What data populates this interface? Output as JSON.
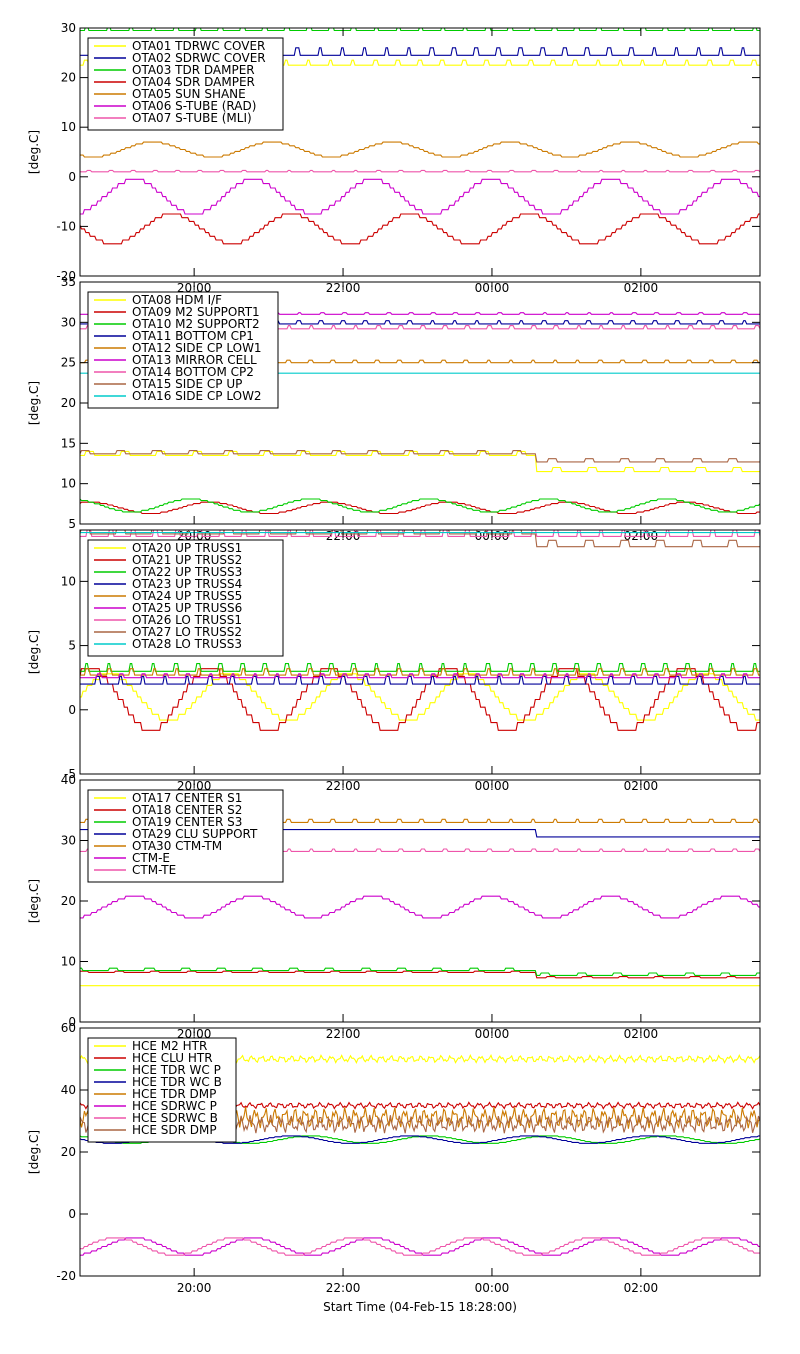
{
  "x_axis": {
    "tick_labels": [
      "20:00",
      "22:00",
      "00:00",
      "02:00"
    ],
    "tick_hours": [
      20,
      22,
      24,
      26
    ],
    "xlim_hours": [
      18.467,
      27.6
    ],
    "title": "Start Time (04-Feb-15 18:28:00)"
  },
  "chart_data": [
    {
      "type": "line",
      "ylabel": "[deg.C]",
      "ylim": [
        -20,
        30
      ],
      "yticks": [
        -20,
        -10,
        0,
        10,
        20,
        30
      ],
      "legend": "top-left",
      "series": [
        {
          "name": "OTA01 TDRWC COVER",
          "color": "#ffff00",
          "kind": "flat",
          "base": 22.5,
          "amp": 1.0
        },
        {
          "name": "OTA02 SDRWC COVER",
          "color": "#000099",
          "kind": "flat",
          "base": 24.5,
          "amp": 1.5
        },
        {
          "name": "OTA03 TDR DAMPER",
          "color": "#00cc00",
          "kind": "flat",
          "base": 29.5,
          "amp": 1.0
        },
        {
          "name": "OTA04 SDR DAMPER",
          "color": "#cc0000",
          "kind": "wave",
          "base": -10.5,
          "amp": 3.0
        },
        {
          "name": "OTA05 SUN SHANE",
          "color": "#cc7a00",
          "kind": "wave",
          "base": 5.5,
          "amp": 1.5
        },
        {
          "name": "OTA06 S-TUBE (RAD)",
          "color": "#cc00cc",
          "kind": "wave",
          "base": -4.0,
          "amp": 3.5
        },
        {
          "name": "OTA07 S-TUBE (MLI)",
          "color": "#ee55aa",
          "kind": "flat",
          "base": 1.0,
          "amp": 0.3
        }
      ]
    },
    {
      "type": "line",
      "ylabel": "[deg.C]",
      "ylim": [
        5,
        35
      ],
      "yticks": [
        5,
        10,
        15,
        20,
        25,
        30,
        35
      ],
      "legend": "top-left",
      "series": [
        {
          "name": "OTA08 HDM I/F",
          "color": "#ffff00",
          "kind": "step",
          "base": 13.5,
          "base2": 11.5,
          "amp": 0.5
        },
        {
          "name": "OTA09 M2 SUPPORT1",
          "color": "#cc0000",
          "kind": "wave",
          "base": 7.0,
          "amp": 0.7
        },
        {
          "name": "OTA10 M2 SUPPORT2",
          "color": "#00cc00",
          "kind": "wave",
          "base": 7.3,
          "amp": 0.8
        },
        {
          "name": "OTA11 BOTTOM CP1",
          "color": "#000099",
          "kind": "flat",
          "base": 29.8,
          "amp": 0.4
        },
        {
          "name": "OTA12 SIDE CP LOW1",
          "color": "#cc7a00",
          "kind": "flat",
          "base": 25.0,
          "amp": 0.3
        },
        {
          "name": "OTA13 MIRROR CELL",
          "color": "#cc00cc",
          "kind": "flat",
          "base": 31.0,
          "amp": 0.2
        },
        {
          "name": "OTA14 BOTTOM CP2",
          "color": "#ee55aa",
          "kind": "flat",
          "base": 29.2,
          "amp": 0.4
        },
        {
          "name": "OTA15 SIDE CP UP",
          "color": "#aa6644",
          "kind": "step",
          "base": 13.7,
          "base2": 12.7,
          "amp": 0.4
        },
        {
          "name": "OTA16 SIDE CP LOW2",
          "color": "#00cccc",
          "kind": "flat",
          "base": 23.7,
          "amp": 0.0
        }
      ]
    },
    {
      "type": "line",
      "ylabel": "[deg.C]",
      "ylim": [
        -5,
        14
      ],
      "yticks": [
        -5,
        0,
        5,
        10
      ],
      "legend": "top-left",
      "series": [
        {
          "name": "OTA20 UP TRUSS1",
          "color": "#ffff00",
          "kind": "wave",
          "base": 1.0,
          "amp": 1.8
        },
        {
          "name": "OTA21 UP TRUSS2",
          "color": "#cc0000",
          "kind": "wave",
          "base": 0.8,
          "amp": 2.4
        },
        {
          "name": "OTA22 UP TRUSS3",
          "color": "#00cc00",
          "kind": "flat",
          "base": 3.0,
          "amp": 0.6
        },
        {
          "name": "OTA23 UP TRUSS4",
          "color": "#000099",
          "kind": "flat",
          "base": 2.0,
          "amp": 0.6
        },
        {
          "name": "OTA24 UP TRUSS5",
          "color": "#cc7a00",
          "kind": "flat",
          "base": 2.7,
          "amp": 0.5
        },
        {
          "name": "OTA25 UP TRUSS6",
          "color": "#cc00cc",
          "kind": "flat",
          "base": 2.5,
          "amp": 0.3
        },
        {
          "name": "OTA26 LO TRUSS1",
          "color": "#ee55aa",
          "kind": "flat",
          "base": 13.5,
          "amp": 0.6
        },
        {
          "name": "OTA27 LO TRUSS2",
          "color": "#aa6644",
          "kind": "step",
          "base": 13.7,
          "base2": 12.7,
          "amp": 0.5
        },
        {
          "name": "OTA28 LO TRUSS3",
          "color": "#00cccc",
          "kind": "flat",
          "base": 13.8,
          "amp": 0.0
        }
      ]
    },
    {
      "type": "line",
      "ylabel": "[deg.C]",
      "ylim": [
        0,
        40
      ],
      "yticks": [
        0,
        10,
        20,
        30,
        40
      ],
      "legend": "top-left",
      "series": [
        {
          "name": "OTA17 CENTER S1",
          "color": "#ffff00",
          "kind": "flat",
          "base": 6.0,
          "amp": 0.0
        },
        {
          "name": "OTA18 CENTER S2",
          "color": "#cc0000",
          "kind": "step",
          "base": 8.2,
          "base2": 7.3,
          "amp": 0.2
        },
        {
          "name": "OTA19 CENTER S3",
          "color": "#00cc00",
          "kind": "step",
          "base": 8.5,
          "base2": 7.7,
          "amp": 0.4
        },
        {
          "name": "OTA29 CLU SUPPORT",
          "color": "#000099",
          "kind": "step",
          "base": 31.8,
          "base2": 30.6,
          "amp": 0.0
        },
        {
          "name": "OTA30 CTM-TM",
          "color": "#cc7a00",
          "kind": "flat",
          "base": 33.0,
          "amp": 0.5
        },
        {
          "name": "CTM-E",
          "color": "#cc00cc",
          "kind": "wave",
          "base": 19.0,
          "amp": 1.8
        },
        {
          "name": "CTM-TE",
          "color": "#ee55aa",
          "kind": "flat",
          "base": 28.2,
          "amp": 0.4
        }
      ]
    },
    {
      "type": "line",
      "ylabel": "[deg.C]",
      "ylim": [
        -20,
        60
      ],
      "yticks": [
        -20,
        0,
        20,
        40,
        60
      ],
      "legend": "top-left",
      "series": [
        {
          "name": "HCE M2 HTR",
          "color": "#ffff00",
          "kind": "noise",
          "base": 50.0,
          "amp": 1.2
        },
        {
          "name": "HCE CLU HTR",
          "color": "#cc0000",
          "kind": "noise",
          "base": 35.0,
          "amp": 1.0
        },
        {
          "name": "HCE TDR WC P",
          "color": "#00cc00",
          "kind": "wave",
          "base": 24.0,
          "amp": 1.2
        },
        {
          "name": "HCE TDR WC B",
          "color": "#000099",
          "kind": "wave",
          "base": 24.0,
          "amp": 1.2
        },
        {
          "name": "HCE TDR DMP",
          "color": "#cc7a00",
          "kind": "noise",
          "base": 31.0,
          "amp": 3.5
        },
        {
          "name": "HCE SDRWC P",
          "color": "#cc00cc",
          "kind": "wave",
          "base": -10.5,
          "amp": 2.8
        },
        {
          "name": "HCE SDRWC B",
          "color": "#ee55aa",
          "kind": "wave",
          "base": -10.5,
          "amp": 2.8
        },
        {
          "name": "HCE SDR DMP",
          "color": "#aa6644",
          "kind": "noise",
          "base": 29.0,
          "amp": 3.0
        }
      ]
    }
  ]
}
